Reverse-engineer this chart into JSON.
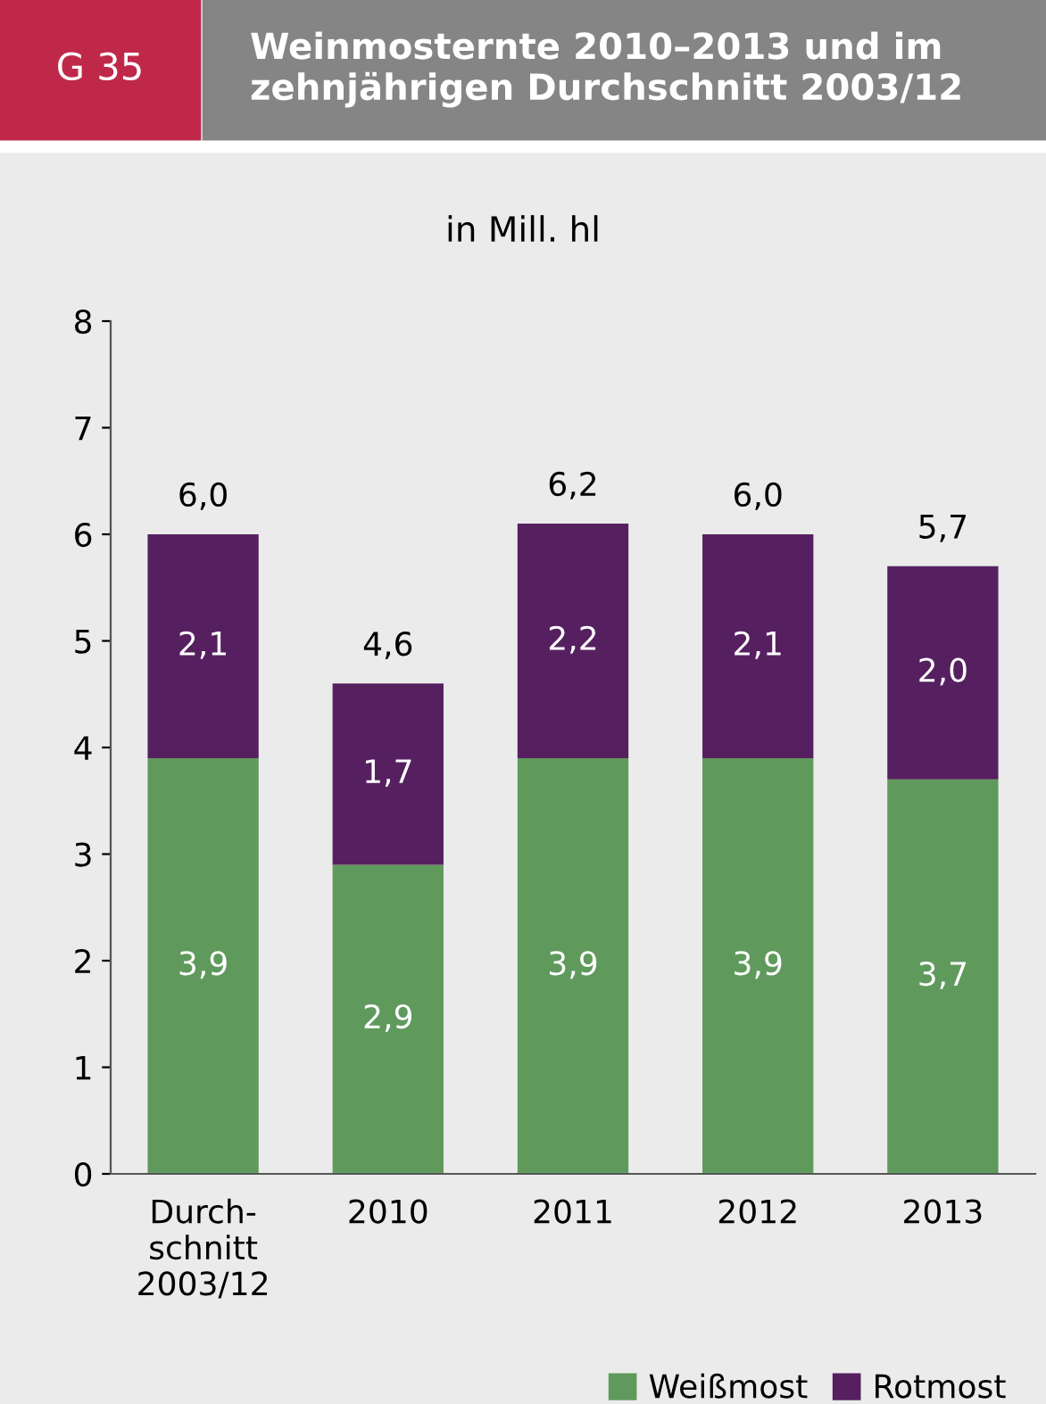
{
  "chart_data": {
    "type": "bar",
    "stacked": true,
    "title": "Weinmosternte 2010–2013 und im zehnjährigen Durchschnitt 2003/12",
    "subtitle": "in Mill. hl",
    "annotations": [
      "G 35"
    ],
    "categories": [
      "Durch-\nschnitt\n2003/12",
      "2010",
      "2011",
      "2012",
      "2013"
    ],
    "series": [
      {
        "name": "Weißmost",
        "color": "#5f9a5c",
        "values": [
          3.9,
          2.9,
          3.9,
          3.9,
          3.7
        ],
        "value_labels": [
          "3,9",
          "2,9",
          "3,9",
          "3,9",
          "3,7"
        ]
      },
      {
        "name": "Rotmost",
        "color": "#562060",
        "values": [
          2.1,
          1.7,
          2.2,
          2.1,
          2.0
        ],
        "value_labels": [
          "2,1",
          "1,7",
          "2,2",
          "2,1",
          "2,0"
        ]
      }
    ],
    "totals": [
      "6,0",
      "4,6",
      "6,2",
      "6,0",
      "5,7"
    ],
    "ylim": [
      0,
      8
    ],
    "yticks": [
      0,
      1,
      2,
      3,
      4,
      5,
      6,
      7,
      8
    ],
    "grid": false,
    "legend": "bottom right"
  }
}
